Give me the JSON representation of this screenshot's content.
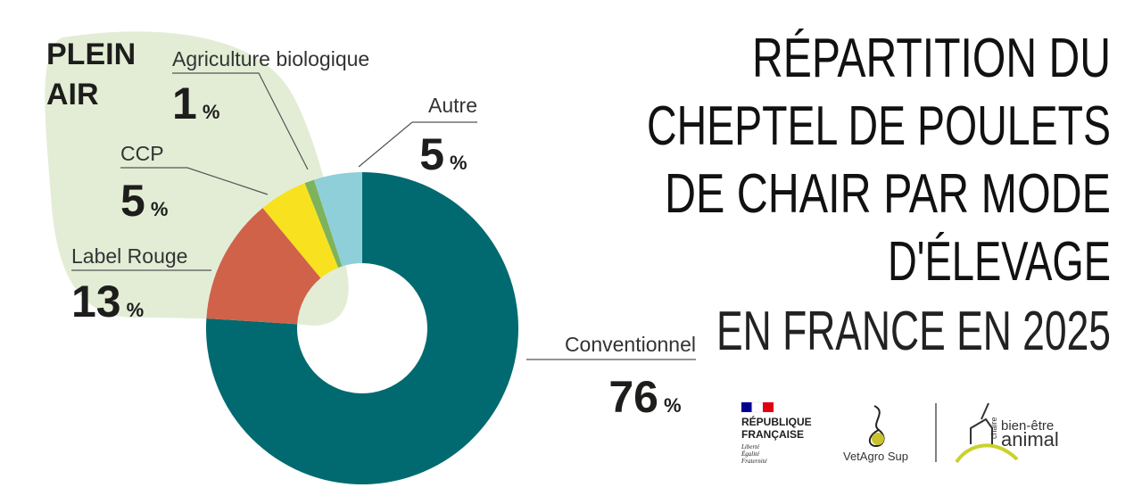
{
  "chart_data": {
    "type": "donut",
    "title": [
      "RÉPARTITION DU",
      "CHEPTEL DE POULETS",
      "DE CHAIR PAR MODE",
      "D'ÉLEVAGE",
      "EN FRANCE EN 2025"
    ],
    "group_label": [
      "PLEIN",
      "AIR"
    ],
    "categories": [
      "Conventionnel",
      "Label Rouge",
      "CCP",
      "Agriculture biologique",
      "Autre"
    ],
    "values": [
      76,
      13,
      5,
      1,
      5
    ],
    "value_suffix": "%",
    "colors": [
      "#006a70",
      "#d0624a",
      "#f8e21f",
      "#7db35a",
      "#8fcfd9"
    ]
  },
  "logos": {
    "republique": [
      "RÉPUBLIQUE",
      "FRANÇAISE"
    ],
    "devise": [
      "Liberté",
      "Égalité",
      "Fraternité"
    ],
    "vetagro": "VetAgro Sup",
    "chaire": [
      "chaire",
      "bien-être",
      "animal"
    ]
  }
}
